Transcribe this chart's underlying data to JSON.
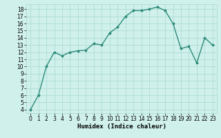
{
  "x": [
    0,
    1,
    2,
    3,
    4,
    5,
    6,
    7,
    8,
    9,
    10,
    11,
    12,
    13,
    14,
    15,
    16,
    17,
    18,
    19,
    20,
    21,
    22,
    23
  ],
  "y": [
    4,
    6,
    10,
    12,
    11.5,
    12,
    12.2,
    12.3,
    13.2,
    13,
    14.7,
    15.5,
    17,
    17.8,
    17.8,
    18,
    18.3,
    17.8,
    16,
    12.5,
    12.8,
    10.5,
    14,
    13
  ],
  "line_color": "#2e8b7a",
  "marker": "*",
  "marker_color": "#2e8b7a",
  "bg_color": "#cff0eb",
  "grid_color": "#a8d8d0",
  "xlabel": "Humidex (Indice chaleur)",
  "xlim": [
    -0.5,
    23.5
  ],
  "ylim": [
    3.5,
    18.7
  ],
  "yticks": [
    4,
    5,
    6,
    7,
    8,
    9,
    10,
    11,
    12,
    13,
    14,
    15,
    16,
    17,
    18
  ],
  "xticks": [
    0,
    1,
    2,
    3,
    4,
    5,
    6,
    7,
    8,
    9,
    10,
    11,
    12,
    13,
    14,
    15,
    16,
    17,
    18,
    19,
    20,
    21,
    22,
    23
  ],
  "tick_fontsize": 5.5,
  "label_fontsize": 6.5,
  "line_width": 1.0,
  "marker_size": 2.5
}
